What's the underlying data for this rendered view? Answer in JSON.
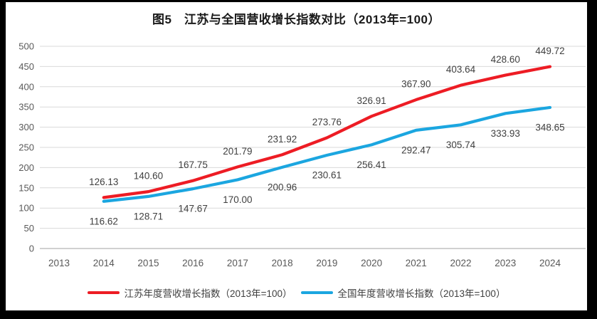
{
  "panel": {
    "background": "#ffffff",
    "frame_color": "#000000"
  },
  "chart_data": {
    "type": "line",
    "title": "图5　江苏与全国营收增长指数对比（2013年=100）",
    "categories": [
      "2013",
      "2014",
      "2015",
      "2016",
      "2017",
      "2018",
      "2019",
      "2020",
      "2021",
      "2022",
      "2023",
      "2024"
    ],
    "series": [
      {
        "id": "jiangsu",
        "name": "江苏年度营收增长指数（2013年=100）",
        "color": "#ed1c24",
        "start_category": "2014",
        "values": [
          126.13,
          140.6,
          167.75,
          201.79,
          231.92,
          273.76,
          326.91,
          367.9,
          403.64,
          428.6,
          449.72
        ],
        "label_position": "above"
      },
      {
        "id": "national",
        "name": "全国年度营收增长指数（2013年=100）",
        "color": "#1ba6e0",
        "start_category": "2014",
        "values": [
          116.62,
          128.71,
          147.67,
          170.0,
          200.96,
          230.61,
          256.41,
          292.47,
          305.74,
          333.93,
          348.65
        ],
        "label_position": "below"
      }
    ],
    "y_axis": {
      "min": 0,
      "max": 500,
      "step": 50
    },
    "grid": true,
    "legend_position": "bottom",
    "colors": {
      "gridline": "#d9d9d9",
      "axis_line": "#b3b3b3",
      "tick_text": "#595959",
      "data_label_text": "#3f3f3f"
    }
  }
}
